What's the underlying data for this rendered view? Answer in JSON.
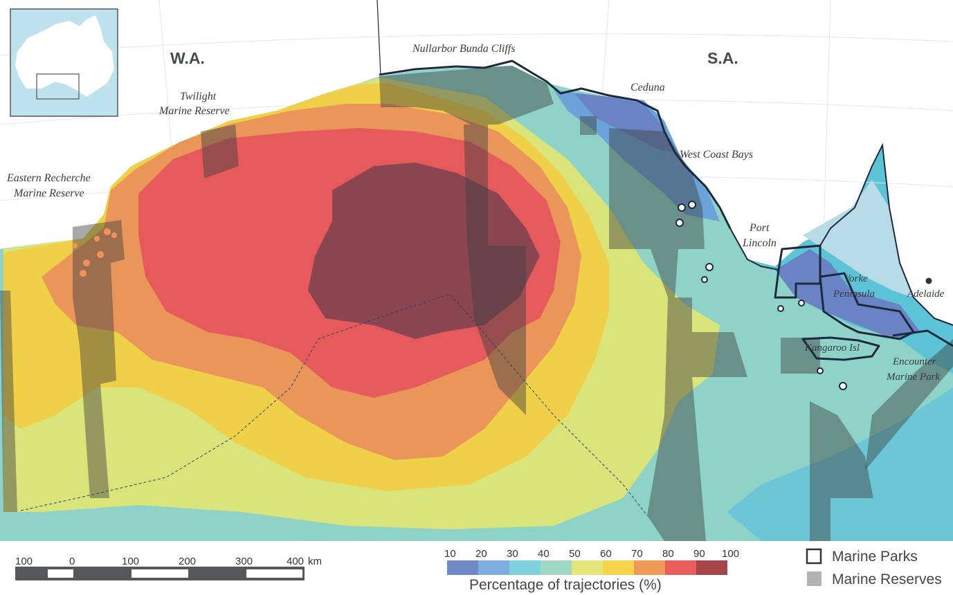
{
  "regions": {
    "west": "W.A.",
    "east": "S.A."
  },
  "places": {
    "nullarbor": "Nullarbor Bunda Cliffs",
    "twilight_1": "Twilight",
    "twilight_2": "Marine Reserve",
    "recherche_1": "Eastern Recherche",
    "recherche_2": "Marine Reserve",
    "ceduna": "Ceduna",
    "west_coast_bays": "West Coast Bays",
    "port_1": "Port",
    "port_2": "Lincoln",
    "yorke_1": "Yorke",
    "yorke_2": "Peninsula",
    "adelaide": "Adelaide",
    "kangaroo": "Kangaroo Isl",
    "encounter_1": "Encounter",
    "encounter_2": "Marine Park"
  },
  "scale_bar": {
    "labels": [
      "100",
      "0",
      "100",
      "200",
      "300",
      "400"
    ],
    "unit": "km"
  },
  "color_legend": {
    "title": "Percentage of trajectories (%)",
    "ticks": [
      "10",
      "20",
      "30",
      "40",
      "50",
      "60",
      "70",
      "80",
      "90",
      "100"
    ],
    "colors": [
      "#7189c4",
      "#7eaee0",
      "#7ed3de",
      "#9fd8c4",
      "#e6e67a",
      "#f6d44c",
      "#ee9955",
      "#e95d5d",
      "#a5454a"
    ]
  },
  "area_legend": {
    "parks": "Marine Parks",
    "reserves": "Marine Reserves"
  },
  "colors": {
    "ocean_outer": "#5dc3d6",
    "land": "#ffffff",
    "park_outline": "#1c2a3c",
    "reserve_fill": "#4a4a4a",
    "inset_water": "#bfe3ee"
  }
}
